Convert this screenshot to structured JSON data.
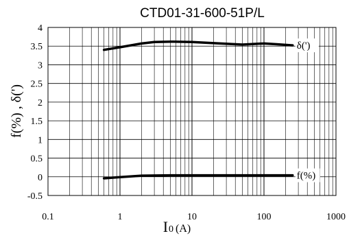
{
  "chart_data": {
    "type": "line",
    "title": "CTD01-31-600-51P/L",
    "x_scale": "log",
    "xlim": [
      0.1,
      1000
    ],
    "ylim": [
      -0.5,
      4
    ],
    "grid": true,
    "x_ticks": [
      0.1,
      1,
      10,
      100,
      1000
    ],
    "x_tick_labels": [
      "0.1",
      "1",
      "10",
      "100",
      "1000"
    ],
    "y_ticks": [
      -0.5,
      0,
      0.5,
      1,
      1.5,
      2,
      2.5,
      3,
      3.5,
      4
    ],
    "y_tick_labels": [
      "-0.5",
      "0",
      "0.5",
      "1",
      "1.5",
      "2",
      "2.5",
      "3",
      "3.5",
      "4"
    ],
    "xlabel_main": "I",
    "xlabel_sub": "0",
    "xlabel_unit": "(A)",
    "ylabel": "f(%) , δ(')",
    "series": [
      {
        "name": "δ(')",
        "x": [
          0.6,
          1,
          2,
          3,
          5,
          10,
          20,
          50,
          100,
          150,
          250
        ],
        "y": [
          3.4,
          3.47,
          3.57,
          3.61,
          3.62,
          3.61,
          3.58,
          3.54,
          3.57,
          3.55,
          3.52
        ]
      },
      {
        "name": "f(%)",
        "x": [
          0.6,
          1,
          2,
          5,
          10,
          50,
          100,
          250
        ],
        "y": [
          -0.04,
          -0.01,
          0.03,
          0.04,
          0.04,
          0.04,
          0.04,
          0.04
        ]
      }
    ]
  }
}
